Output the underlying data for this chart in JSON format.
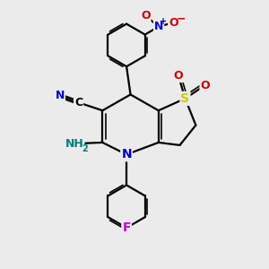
{
  "bg_color": "#ebebeb",
  "bond_color": "#000000",
  "bond_width": 1.6,
  "atom_colors": {
    "N": "#0000cc",
    "O": "#cc0000",
    "S": "#cccc00",
    "F": "#cc00cc",
    "C": "#000000",
    "H": "#008080"
  },
  "font_size": 9
}
